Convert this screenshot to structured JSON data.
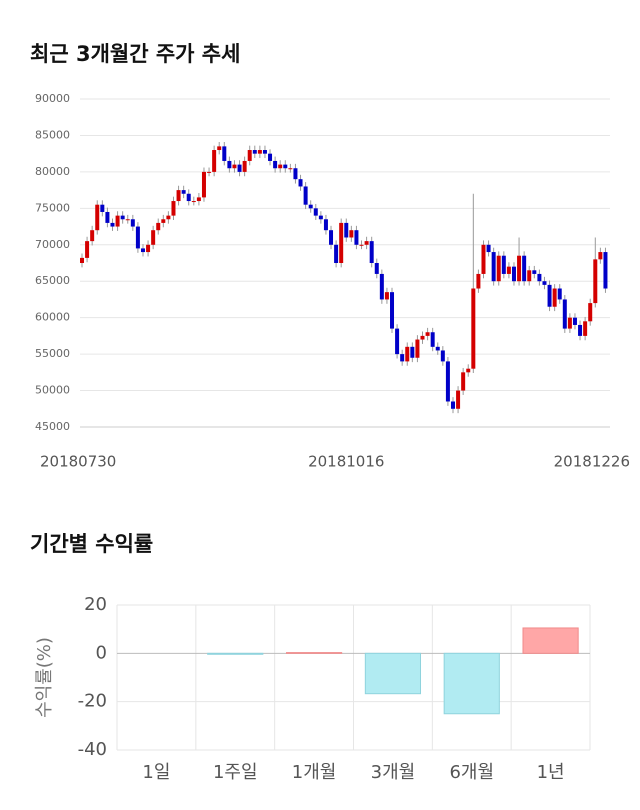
{
  "chart_data": [
    {
      "type": "candlestick",
      "title": "최근 3개월간 주가 추세",
      "categories": [
        "20180730",
        null,
        null,
        null,
        null,
        null,
        null,
        null,
        null,
        null,
        null,
        null,
        null,
        null,
        null,
        null,
        null,
        null,
        null,
        null,
        null,
        null,
        null,
        null,
        null,
        null,
        null,
        null,
        null,
        null,
        null,
        null,
        null,
        null,
        null,
        null,
        null,
        null,
        null,
        null,
        null,
        null,
        null,
        null,
        null,
        null,
        null,
        null,
        null,
        null,
        null,
        null,
        "20181016",
        null,
        null,
        null,
        null,
        null,
        null,
        null,
        null,
        null,
        null,
        null,
        null,
        null,
        null,
        null,
        null,
        null,
        null,
        null,
        null,
        null,
        null,
        null,
        null,
        null,
        null,
        null,
        null,
        null,
        null,
        null,
        null,
        null,
        null,
        null,
        null,
        null,
        null,
        null,
        null,
        null,
        null,
        null,
        null,
        null,
        null,
        null,
        null,
        "20181226",
        null,
        null
      ],
      "open": [
        67500,
        68200,
        70500,
        72000,
        75500,
        74500,
        73000,
        72500,
        74000,
        73500,
        73500,
        72500,
        69500,
        69000,
        70000,
        72000,
        73000,
        73500,
        74000,
        76000,
        77500,
        77000,
        76000,
        76000,
        76500,
        80000,
        80000,
        83000,
        83500,
        81500,
        80500,
        81000,
        80000,
        81500,
        83000,
        82500,
        83000,
        82500,
        81500,
        80500,
        81000,
        80500,
        80500,
        79000,
        78000,
        75500,
        75000,
        74000,
        73500,
        72000,
        70000,
        67500,
        73000,
        71000,
        72000,
        70000,
        70000,
        70500,
        67500,
        66000,
        62500,
        63500,
        58500,
        55000,
        54000,
        56000,
        54500,
        57000,
        57500,
        58000,
        56000,
        55500,
        54000,
        48500,
        47500,
        50000,
        52500,
        53000,
        64000,
        66000,
        70000,
        69000,
        65000,
        68500,
        66000,
        67000,
        65000,
        68500,
        65000,
        66500,
        66000,
        65000,
        64500,
        61500,
        64000,
        62500,
        58500,
        60000,
        59000,
        57500,
        59500,
        62000,
        68000,
        69000
      ],
      "high": [
        68800,
        71100,
        72600,
        76100,
        76100,
        75100,
        73600,
        74600,
        74600,
        74100,
        74100,
        73100,
        70100,
        70600,
        72600,
        73600,
        74100,
        74600,
        76600,
        78100,
        78100,
        77600,
        76600,
        77100,
        80600,
        80600,
        83600,
        84100,
        84100,
        82100,
        81600,
        81600,
        82100,
        83600,
        83600,
        83600,
        83600,
        83100,
        82100,
        81600,
        81600,
        81100,
        81100,
        79600,
        78600,
        76100,
        75600,
        74600,
        74100,
        72600,
        70600,
        73600,
        73600,
        72600,
        72600,
        70600,
        71100,
        71100,
        68100,
        66600,
        64100,
        64100,
        59100,
        55600,
        56600,
        56600,
        57600,
        58100,
        58600,
        58600,
        56600,
        56100,
        54600,
        49100,
        50600,
        53100,
        53600,
        77000,
        66600,
        70600,
        70600,
        69600,
        69100,
        69100,
        67600,
        67600,
        71000,
        69100,
        67100,
        67100,
        66600,
        65600,
        65100,
        64600,
        64600,
        63100,
        60600,
        60600,
        59600,
        60100,
        62600,
        71000,
        69600,
        69600
      ],
      "low": [
        66900,
        67600,
        69900,
        71400,
        73900,
        72400,
        71900,
        71900,
        72900,
        72900,
        71900,
        68900,
        68400,
        68400,
        69400,
        71400,
        72400,
        72900,
        73400,
        75400,
        76400,
        75400,
        75400,
        75400,
        75900,
        79400,
        79400,
        82400,
        80900,
        79900,
        79900,
        79400,
        79400,
        80900,
        81900,
        81900,
        81900,
        80900,
        79900,
        79900,
        79900,
        79900,
        78400,
        77400,
        74900,
        74400,
        73400,
        72900,
        71400,
        69400,
        66900,
        66900,
        70400,
        70400,
        69400,
        69400,
        69400,
        66900,
        65400,
        61900,
        61900,
        57900,
        54400,
        53400,
        53400,
        53900,
        53900,
        56400,
        56900,
        55400,
        54900,
        53400,
        47900,
        46900,
        46900,
        49400,
        51900,
        52400,
        63400,
        65400,
        68400,
        64400,
        64400,
        65400,
        65400,
        64400,
        64400,
        64400,
        64400,
        65400,
        64400,
        63900,
        60900,
        60900,
        61900,
        57900,
        57900,
        58400,
        56900,
        56900,
        58900,
        61400,
        67400,
        63400
      ],
      "close": [
        68200,
        70500,
        72000,
        75500,
        74500,
        73000,
        72500,
        74000,
        73500,
        73500,
        72500,
        69500,
        69000,
        70000,
        72000,
        73000,
        73500,
        74000,
        76000,
        77500,
        77000,
        76000,
        76000,
        76500,
        80000,
        80000,
        83000,
        83500,
        81500,
        80500,
        81000,
        80000,
        81500,
        83000,
        82500,
        83000,
        82500,
        81500,
        80500,
        81000,
        80500,
        80500,
        79000,
        78000,
        75500,
        75000,
        74000,
        73500,
        72000,
        70000,
        67500,
        73000,
        71000,
        72000,
        70000,
        70000,
        70500,
        67500,
        66000,
        62500,
        63500,
        58500,
        55000,
        54000,
        56000,
        54500,
        57000,
        57500,
        58000,
        56000,
        55500,
        54000,
        48500,
        47500,
        50000,
        52500,
        53000,
        64000,
        66000,
        70000,
        69000,
        65000,
        68500,
        66000,
        67000,
        65000,
        68500,
        65000,
        66500,
        66000,
        65000,
        64500,
        61500,
        64000,
        62500,
        58500,
        60000,
        59000,
        57500,
        59500,
        62000,
        68000,
        69000,
        64000
      ],
      "up_color": "#d40000",
      "down_color": "#0000c8",
      "ylim": [
        45000,
        90000
      ],
      "yticks": [
        45000,
        50000,
        55000,
        60000,
        65000,
        70000,
        75000,
        80000,
        85000,
        90000
      ],
      "grid": true
    },
    {
      "type": "bar",
      "title": "기간별 수익률",
      "y_label": "수익률(%)",
      "categories": [
        "1일",
        "1주일",
        "1개월",
        "3개월",
        "6개월",
        "1년"
      ],
      "values": [
        0,
        -0.4,
        0.3,
        -16.7,
        -25,
        10.5
      ],
      "positive_color": "#ffa7a7",
      "negative_color": "#b1ebf2",
      "ylim": [
        -40,
        20
      ],
      "yticks": [
        -40,
        -20,
        0,
        20
      ],
      "grid": true
    }
  ]
}
